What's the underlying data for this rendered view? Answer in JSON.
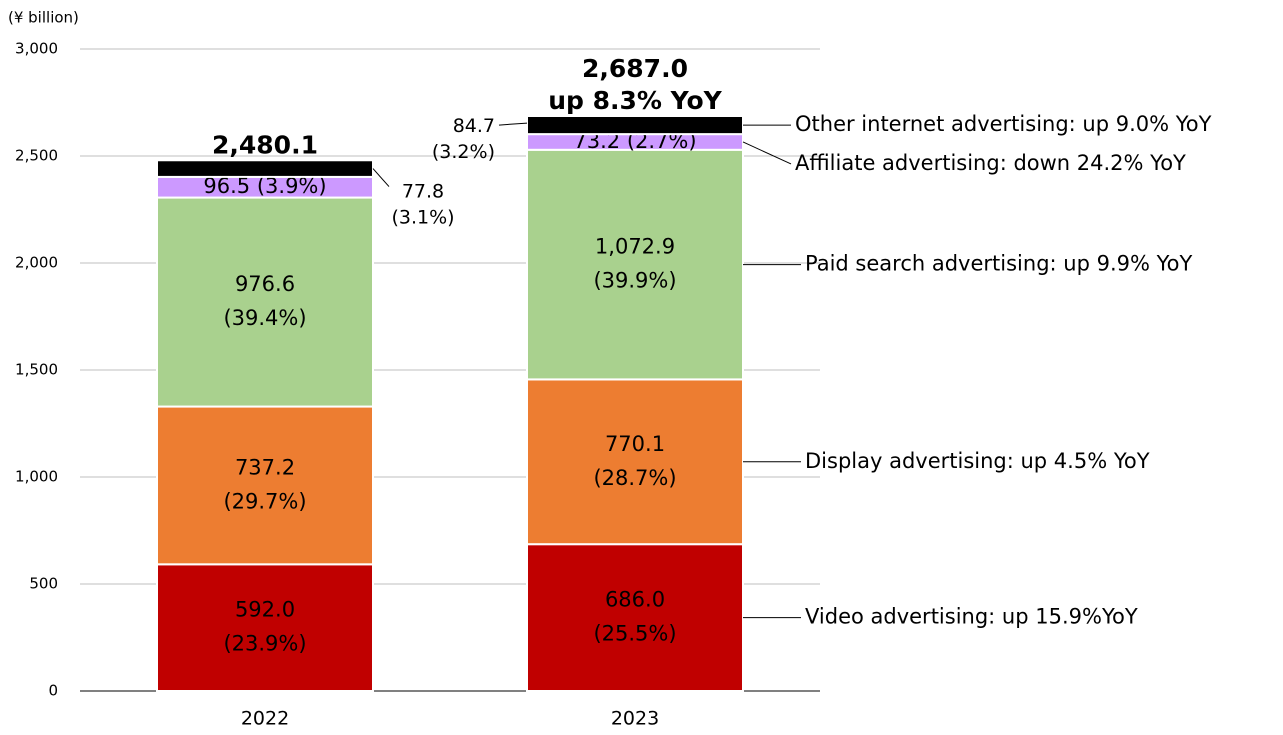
{
  "chart_data": {
    "type": "stacked-bar",
    "y_label": "(¥ billion)",
    "categories": [
      "2022",
      "2023"
    ],
    "ylim": [
      0,
      3000
    ],
    "yticks": [
      0,
      500,
      {
        "value": 1000,
        "label": "1,000"
      },
      {
        "value": 1500,
        "label": "1,500"
      },
      {
        "value": 2000,
        "label": "2,000"
      },
      {
        "value": 2500,
        "label": "2,500"
      },
      {
        "value": 3000,
        "label": "3,000"
      }
    ],
    "grid": true,
    "series": [
      {
        "name": "Video advertising: up 15.9%YoY",
        "color": "#c00000",
        "values": [
          592.0,
          686.0
        ],
        "value_labels": [
          [
            "592.0",
            "(23.9%)"
          ],
          [
            "686.0",
            "(25.5%)"
          ]
        ]
      },
      {
        "name": "Display advertising: up 4.5% YoY",
        "color": "#ed7d31",
        "values": [
          737.2,
          770.1
        ],
        "value_labels": [
          [
            "737.2",
            "(29.7%)"
          ],
          [
            "770.1",
            "(28.7%)"
          ]
        ]
      },
      {
        "name": "Paid search advertising: up 9.9% YoY",
        "color": "#a9d18e",
        "values": [
          976.6,
          1072.9
        ],
        "value_labels": [
          [
            "976.6",
            "(39.4%)"
          ],
          [
            "1,072.9",
            "(39.9%)"
          ]
        ]
      },
      {
        "name": "Affiliate advertising: down 24.2% YoY",
        "color": "#cc99ff",
        "values": [
          96.5,
          73.2
        ],
        "value_labels": [
          [
            "96.5 (3.9%)"
          ],
          [
            "73.2 (2.7%)"
          ]
        ]
      },
      {
        "name": "Other internet advertising: up 9.0% YoY",
        "color": "#000000",
        "values": [
          77.8,
          84.7
        ],
        "value_labels": [
          [
            "77.8",
            "(3.1%)"
          ],
          [
            "84.7",
            "(3.2%)"
          ]
        ]
      }
    ],
    "totals": [
      2480.1,
      2687.0
    ],
    "total_labels": [
      [
        "2,480.1"
      ],
      [
        "2,687.0",
        "up 8.3% YoY"
      ]
    ]
  }
}
